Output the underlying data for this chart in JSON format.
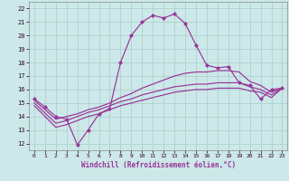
{
  "background_color": "#cce8e8",
  "line_color": "#993399",
  "grid_color": "#aacccc",
  "xlabel": "Windchill (Refroidissement éolien,°C)",
  "xlim": [
    -0.5,
    23.5
  ],
  "ylim": [
    11.5,
    22.5
  ],
  "xtick_vals": [
    0,
    1,
    2,
    3,
    4,
    5,
    6,
    7,
    8,
    9,
    10,
    11,
    12,
    13,
    14,
    15,
    16,
    17,
    18,
    19,
    20,
    21,
    22,
    23
  ],
  "ytick_vals": [
    12,
    13,
    14,
    15,
    16,
    17,
    18,
    19,
    20,
    21,
    22
  ],
  "line1_x": [
    0,
    1,
    2,
    3,
    4,
    5,
    6,
    7,
    8,
    9,
    10,
    11,
    12,
    13,
    14,
    15,
    16,
    17,
    18,
    19,
    20,
    21,
    22,
    23
  ],
  "line1_y": [
    15.3,
    14.7,
    14.0,
    13.8,
    11.9,
    13.0,
    14.2,
    14.6,
    18.0,
    20.0,
    21.0,
    21.5,
    21.3,
    21.6,
    20.9,
    19.3,
    17.8,
    17.6,
    17.7,
    16.5,
    16.3,
    15.3,
    16.0,
    16.1
  ],
  "line2_x": [
    0,
    2,
    3,
    4,
    5,
    6,
    7,
    8,
    9,
    10,
    11,
    12,
    13,
    14,
    15,
    16,
    17,
    18,
    19,
    20,
    21,
    22,
    23
  ],
  "line2_y": [
    15.2,
    13.8,
    14.0,
    14.2,
    14.5,
    14.7,
    15.0,
    15.4,
    15.7,
    16.1,
    16.4,
    16.7,
    17.0,
    17.2,
    17.3,
    17.3,
    17.4,
    17.4,
    17.3,
    16.6,
    16.3,
    15.8,
    16.1
  ],
  "line3_x": [
    0,
    2,
    3,
    4,
    5,
    6,
    7,
    8,
    9,
    10,
    11,
    12,
    13,
    14,
    15,
    16,
    17,
    18,
    19,
    20,
    21,
    22,
    23
  ],
  "line3_y": [
    15.0,
    13.5,
    13.7,
    14.0,
    14.3,
    14.5,
    14.8,
    15.1,
    15.3,
    15.6,
    15.8,
    16.0,
    16.2,
    16.3,
    16.4,
    16.4,
    16.5,
    16.5,
    16.5,
    16.2,
    16.0,
    15.6,
    16.1
  ],
  "line4_x": [
    0,
    2,
    3,
    4,
    5,
    6,
    7,
    8,
    9,
    10,
    11,
    12,
    13,
    14,
    15,
    16,
    17,
    18,
    19,
    20,
    21,
    22,
    23
  ],
  "line4_y": [
    14.8,
    13.2,
    13.4,
    13.7,
    14.0,
    14.2,
    14.5,
    14.8,
    15.0,
    15.2,
    15.4,
    15.6,
    15.8,
    15.9,
    16.0,
    16.0,
    16.1,
    16.1,
    16.1,
    15.9,
    15.8,
    15.4,
    16.1
  ]
}
